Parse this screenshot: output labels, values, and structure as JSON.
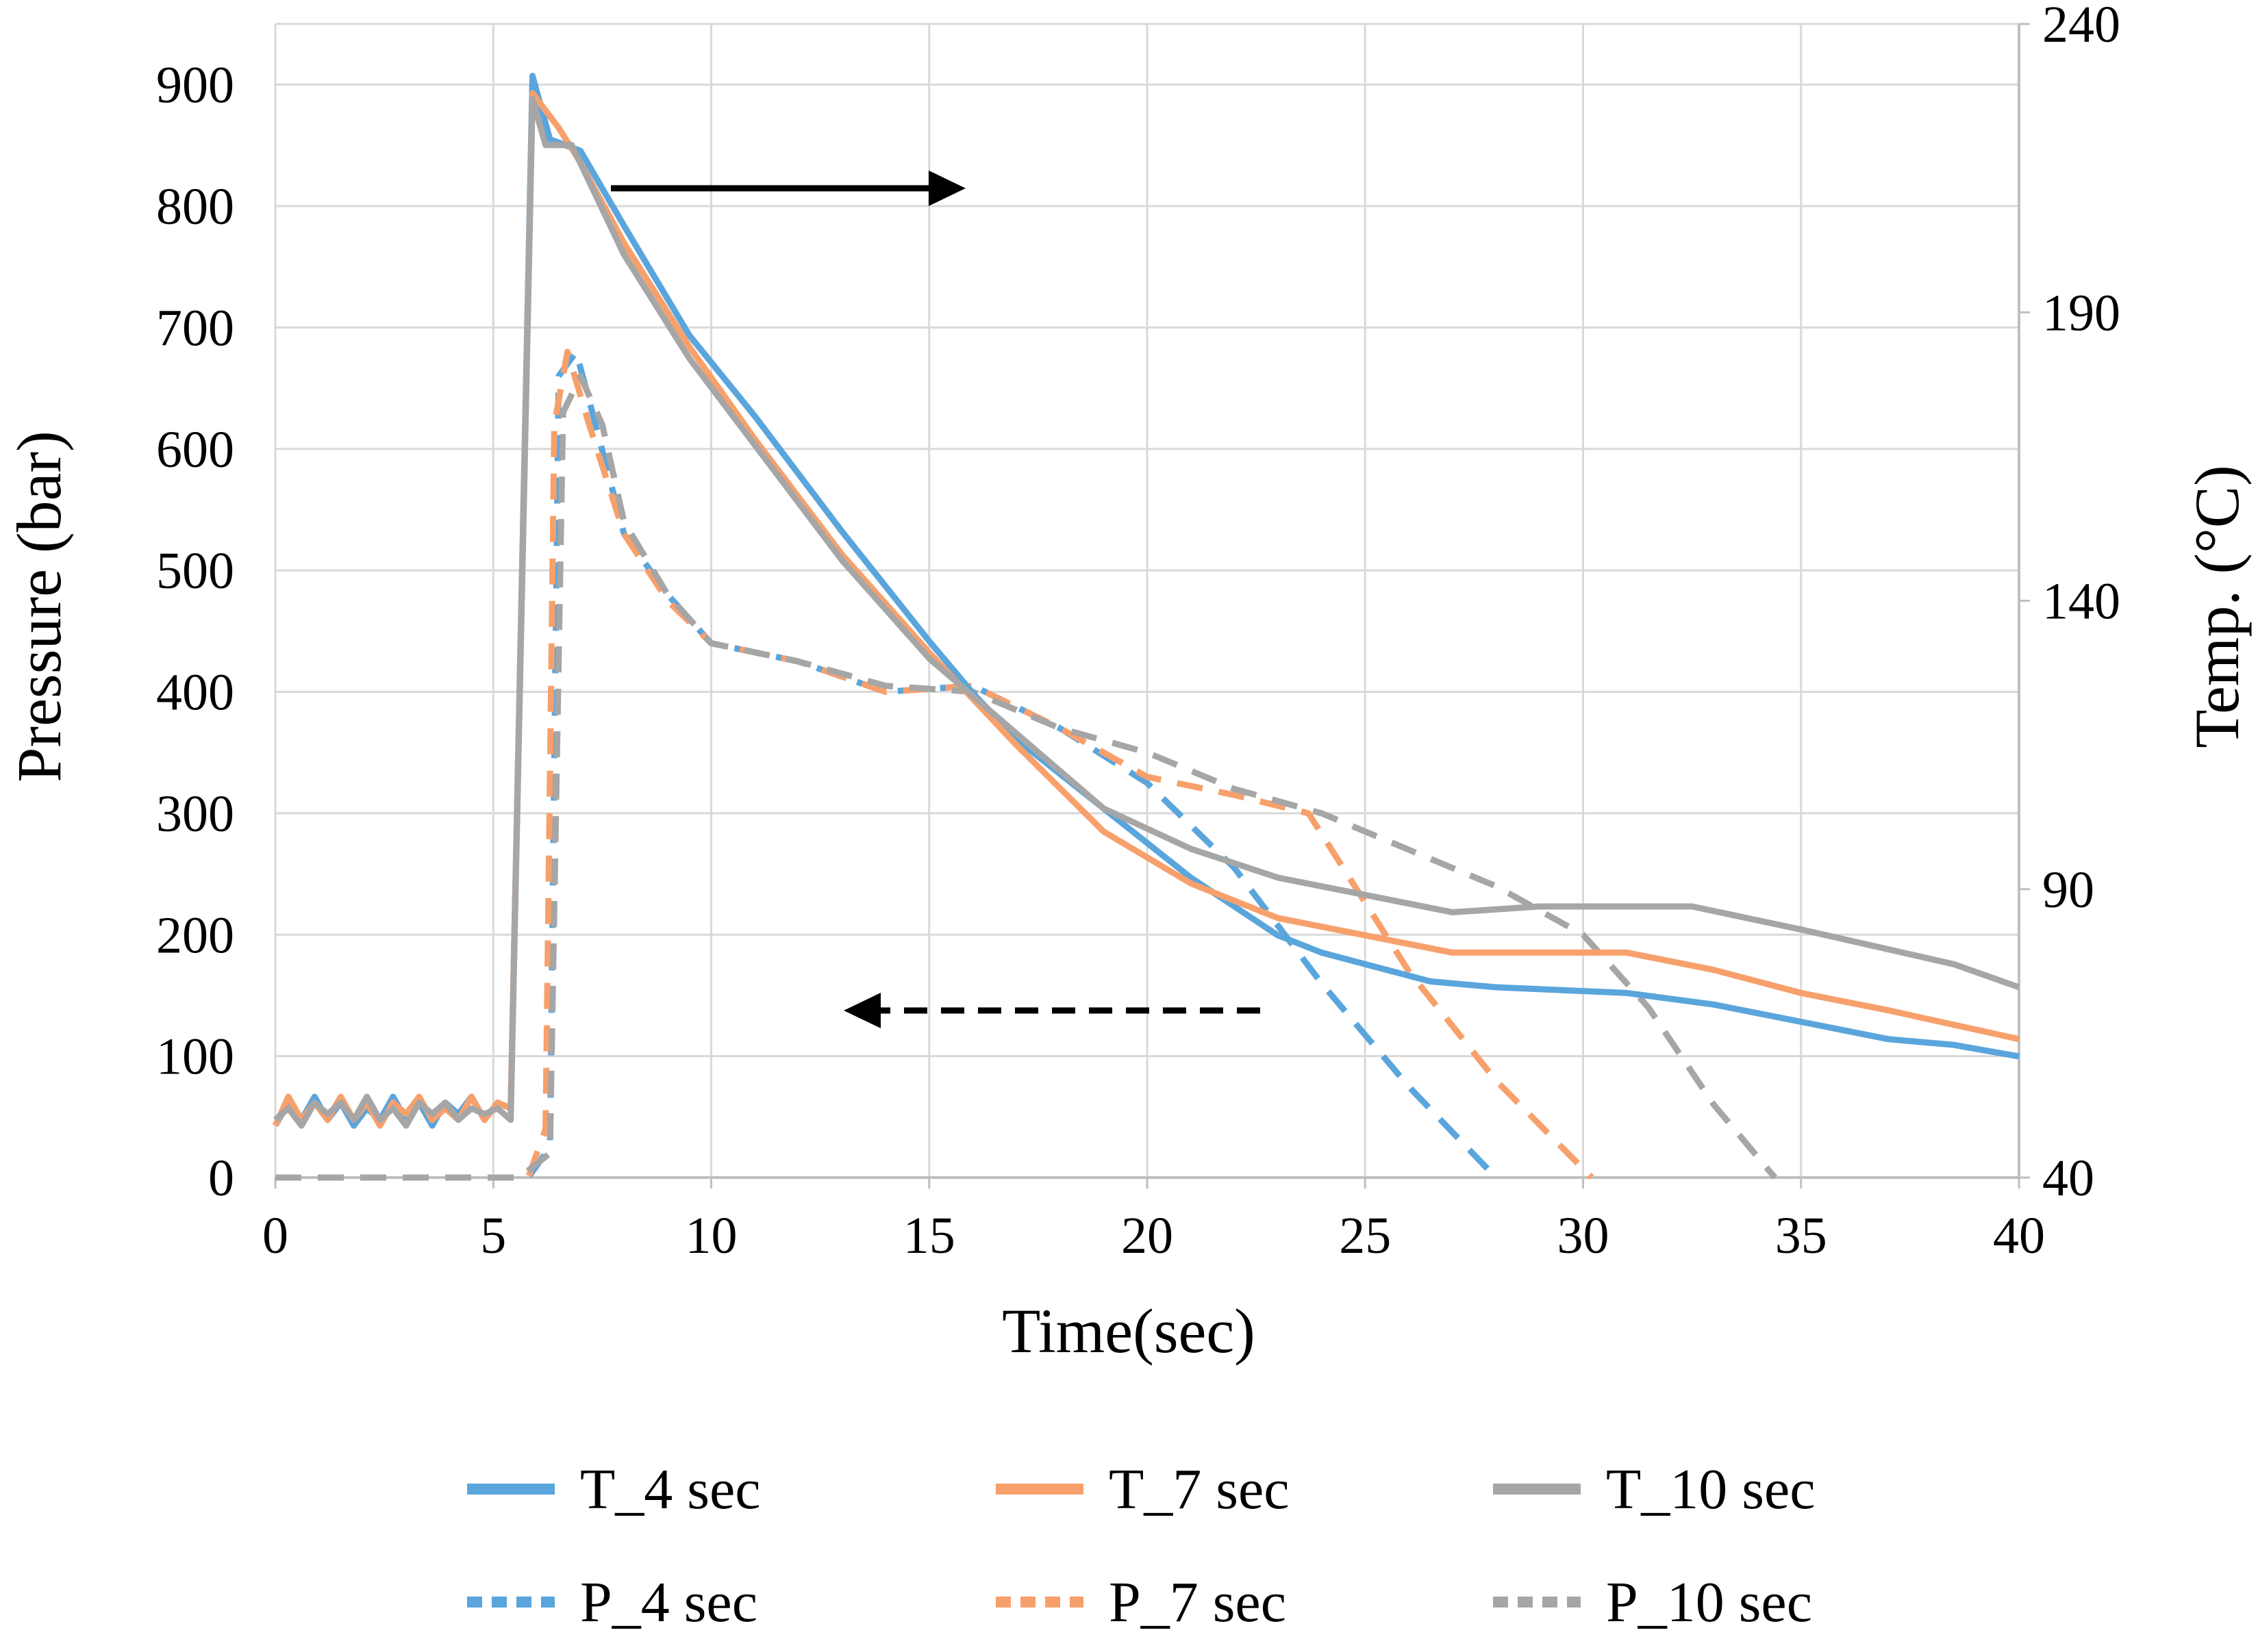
{
  "chart_data": {
    "type": "line",
    "xlabel": "Time(sec)",
    "ylabel_left": "Pressure (bar)",
    "ylabel_right": "Temp. (°C)",
    "xlim": [
      0,
      40
    ],
    "ylim_left": [
      0,
      950
    ],
    "ylim_right": [
      40,
      240
    ],
    "x_ticks": [
      "0",
      "5",
      "10",
      "15",
      "20",
      "25",
      "30",
      "35",
      "40"
    ],
    "y_left_ticks": [
      "0",
      "100",
      "200",
      "300",
      "400",
      "500",
      "600",
      "700",
      "800",
      "900"
    ],
    "y_right_ticks": [
      "40",
      "90",
      "140",
      "190",
      "240"
    ],
    "grid": true,
    "legend_position": "bottom",
    "colors": {
      "blue": "#5AA5DC",
      "orange": "#F7A06C",
      "gray": "#A6A6A6",
      "arrow": "#000000"
    },
    "annotations": [
      {
        "type": "arrow",
        "direction": "right",
        "style": "solid",
        "meaning": "temperature curves read on right axis"
      },
      {
        "type": "arrow",
        "direction": "left",
        "style": "dashed",
        "meaning": "pressure curves read on left axis"
      }
    ],
    "series": [
      {
        "name": "T_4 sec",
        "axis": "right",
        "style": "solid",
        "color": "#5AA5DC",
        "x": [
          0,
          0.3,
          0.6,
          0.9,
          1.2,
          1.5,
          1.8,
          2.1,
          2.4,
          2.7,
          3.0,
          3.3,
          3.6,
          3.9,
          4.2,
          4.5,
          4.8,
          5.1,
          5.4,
          5.9,
          6.3,
          7.0,
          8.0,
          9.5,
          11.0,
          13.0,
          15.0,
          16.0,
          17.0,
          18.0,
          19.0,
          20.0,
          21.0,
          22.0,
          23.0,
          24.0,
          25.0,
          26.5,
          28.0,
          31.0,
          33.0,
          35.0,
          37.0,
          38.5,
          40.0
        ],
        "y": [
          49,
          53,
          50,
          54,
          50,
          53,
          49,
          52,
          50,
          54,
          50,
          53,
          49,
          53,
          51,
          54,
          50,
          53,
          52,
          231,
          220,
          218,
          205,
          186,
          172,
          152,
          133,
          124,
          116,
          110,
          104,
          98,
          92,
          87,
          82,
          79,
          77,
          74,
          73,
          72,
          70,
          67,
          64,
          63,
          61
        ]
      },
      {
        "name": "T_7 sec",
        "axis": "right",
        "style": "solid",
        "color": "#F7A06C",
        "x": [
          0,
          0.3,
          0.6,
          0.9,
          1.2,
          1.5,
          1.8,
          2.1,
          2.4,
          2.7,
          3.0,
          3.3,
          3.6,
          3.9,
          4.2,
          4.5,
          4.8,
          5.1,
          5.4,
          5.9,
          6.5,
          7.0,
          8.0,
          9.5,
          11.0,
          13.0,
          15.0,
          17.0,
          19.0,
          21.0,
          23.0,
          25.0,
          27.0,
          29.0,
          31.0,
          33.0,
          35.0,
          37.0,
          40.0
        ],
        "y": [
          49,
          54,
          50,
          53,
          50,
          54,
          50,
          53,
          49,
          53,
          51,
          54,
          50,
          52,
          50,
          54,
          50,
          53,
          52,
          228,
          222,
          216,
          202,
          184,
          168,
          148,
          131,
          115,
          100,
          91,
          85,
          82,
          79,
          79,
          79,
          76,
          72,
          69,
          64
        ]
      },
      {
        "name": "T_10 sec",
        "axis": "right",
        "style": "solid",
        "color": "#A6A6A6",
        "x": [
          0,
          0.3,
          0.6,
          0.9,
          1.2,
          1.5,
          1.8,
          2.1,
          2.4,
          2.7,
          3.0,
          3.3,
          3.6,
          3.9,
          4.2,
          4.5,
          4.8,
          5.1,
          5.4,
          5.9,
          6.2,
          6.8,
          8.0,
          9.5,
          11.0,
          13.0,
          15.0,
          17.0,
          19.0,
          21.0,
          23.0,
          25.0,
          27.0,
          29.0,
          30.0,
          32.5,
          35.0,
          38.5,
          40.0
        ],
        "y": [
          50,
          52,
          49,
          53,
          51,
          53,
          50,
          54,
          50,
          52,
          49,
          53,
          51,
          53,
          50,
          52,
          51,
          52,
          50,
          227,
          219,
          219,
          200,
          182,
          167,
          147,
          130,
          117,
          104,
          97,
          92,
          89,
          86,
          87,
          87,
          87,
          83,
          77,
          73
        ]
      },
      {
        "name": "P_4 sec",
        "axis": "left",
        "style": "dashed",
        "color": "#5AA5DC",
        "x": [
          0,
          5.0,
          5.8,
          6.3,
          6.5,
          6.9,
          7.2,
          8.0,
          9.0,
          10.0,
          12.0,
          14.0,
          16.0,
          18.0,
          20.0,
          22.0,
          24.0,
          26.0,
          28.0
        ],
        "y": [
          0,
          0,
          0,
          25,
          660,
          680,
          640,
          530,
          480,
          440,
          425,
          400,
          405,
          370,
          325,
          255,
          160,
          75,
          0
        ]
      },
      {
        "name": "P_7 sec",
        "axis": "left",
        "style": "dashed",
        "color": "#F7A06C",
        "x": [
          0,
          5.0,
          5.8,
          6.2,
          6.4,
          6.7,
          7.2,
          8.0,
          9.0,
          10.0,
          12.0,
          14.0,
          16.0,
          18.0,
          20.0,
          22.0,
          23.7,
          26.0,
          28.0,
          30.2
        ],
        "y": [
          0,
          0,
          0,
          40,
          620,
          680,
          620,
          530,
          475,
          440,
          425,
          400,
          405,
          370,
          330,
          315,
          300,
          170,
          80,
          0
        ]
      },
      {
        "name": "P_10 sec",
        "axis": "left",
        "style": "dashed",
        "color": "#A6A6A6",
        "x": [
          0,
          5.0,
          5.6,
          6.3,
          6.6,
          7.0,
          7.5,
          8.0,
          9.0,
          10.0,
          12.0,
          14.0,
          16.0,
          18.0,
          20.0,
          22.0,
          24.0,
          26.0,
          28.0,
          30.0,
          31.5,
          33.0,
          34.4
        ],
        "y": [
          0,
          0,
          0,
          20,
          630,
          660,
          620,
          540,
          480,
          440,
          425,
          405,
          400,
          370,
          350,
          320,
          300,
          270,
          240,
          200,
          140,
          60,
          0
        ]
      }
    ]
  }
}
